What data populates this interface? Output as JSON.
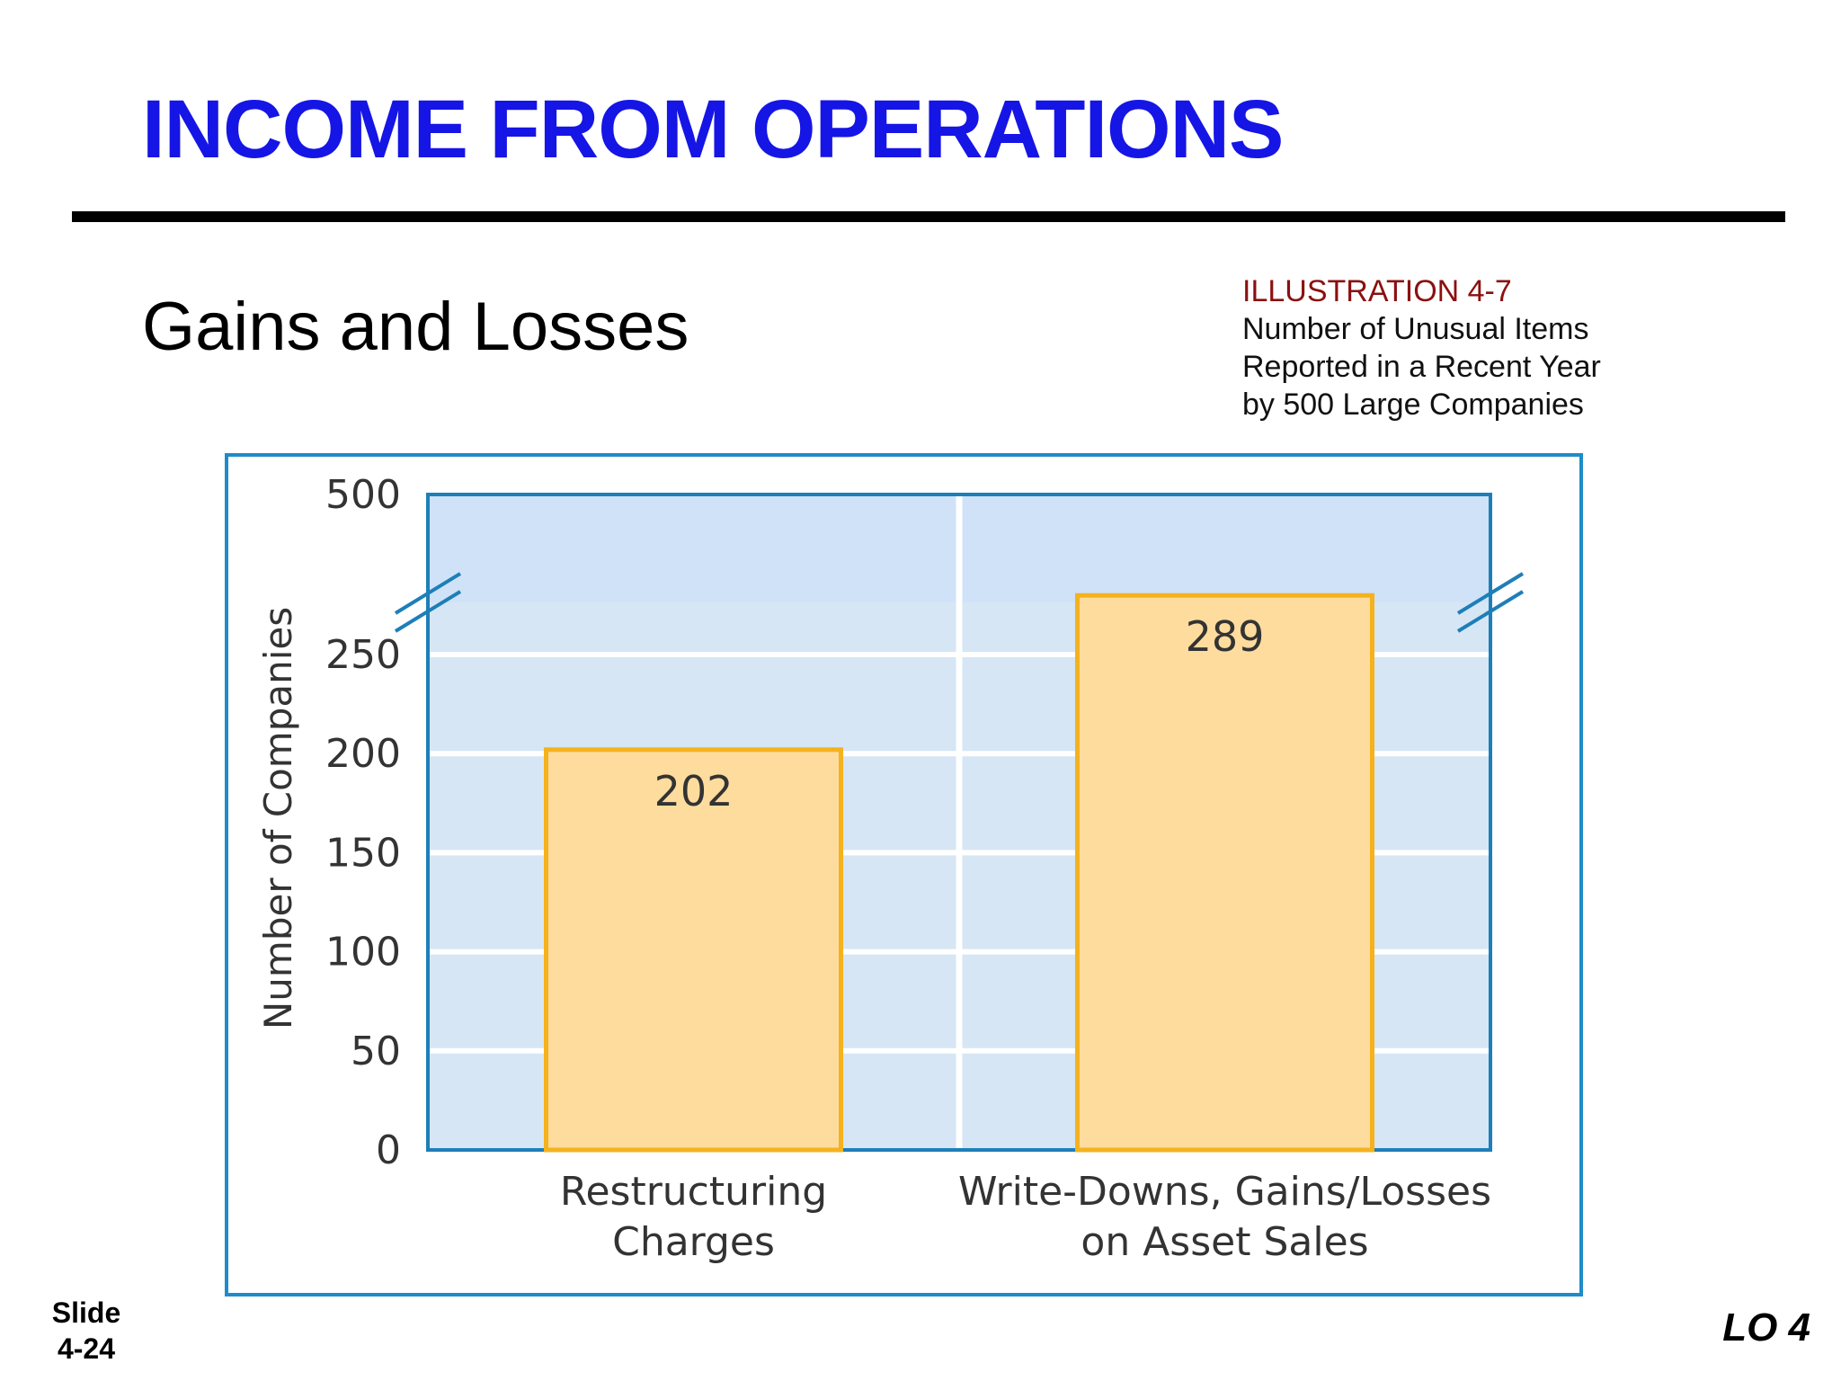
{
  "slide": {
    "title": "INCOME FROM OPERATIONS",
    "subtitle": "Gains and Losses",
    "illustration": {
      "label": "ILLUSTRATION 4-7",
      "lines": [
        "Number of Unusual Items",
        "Reported in a Recent Year",
        "by 500 Large Companies"
      ]
    },
    "footer_slide_lines": [
      "Slide",
      "4-24"
    ],
    "footer_lo": "LO 4"
  },
  "chart_data": {
    "type": "bar",
    "categories": [
      [
        "Restructuring",
        "Charges"
      ],
      [
        "Write-Downs, Gains/Losses",
        "on Asset Sales"
      ]
    ],
    "values": [
      202,
      289
    ],
    "data_labels": [
      "202",
      "289"
    ],
    "ylabel": "Number of Companies",
    "yticks": [
      0,
      50,
      100,
      150,
      200,
      250,
      500
    ],
    "ylim": [
      0,
      500
    ],
    "axis_break": {
      "between": [
        250,
        500
      ]
    },
    "grid": true,
    "colors": {
      "plot_bg": "#d6e6f5",
      "plot_top_bg": "#d0e2f7",
      "frame": "#1e8cc8",
      "axis": "#1d7fb8",
      "bar_fill": "#fddc9e",
      "bar_stroke": "#f5b21e",
      "gridline": "#ffffff",
      "text": "#333333"
    }
  }
}
